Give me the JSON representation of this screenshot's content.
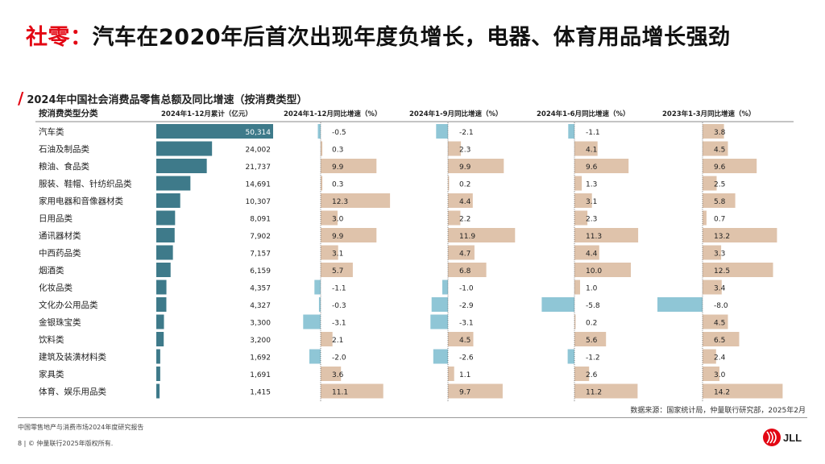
{
  "title": {
    "highlight": "社零：",
    "rest": "汽车在2020年后首次出现年度负增长，电器、体育用品增长强劲"
  },
  "subtitle": "2024年中国社会消费品零售总额及同比增速（按消费类型）",
  "source": "数据来源：国家统计局，仲量联行研究部，2025年2月",
  "footer": {
    "report": "中国零售地产与消费市场2024年度研究报告",
    "page": "8",
    "copyright": "© 仲量联行2025年版权所有."
  },
  "logo": {
    "text": "JLL",
    "color": "#e30613"
  },
  "colors": {
    "total": "#3e7a8a",
    "positive": "#dfc3ab",
    "negative": "#8fc6d6",
    "axis": "#555555"
  },
  "chart_data": {
    "type": "table",
    "columns": [
      "按消费类型分类",
      "2024年1-12月累计（亿元）",
      "2024年1-12月同比增速（%）",
      "2024年1-9月同比增速（%）",
      "2024年1-6月同比增速（%）",
      "2023年1-3月同比增速（%）"
    ],
    "categories": [
      "汽车类",
      "石油及制品类",
      "粮油、食品类",
      "服装、鞋帽、针纺织品类",
      "家用电器和音像器材类",
      "日用品类",
      "通讯器材类",
      "中西药品类",
      "烟酒类",
      "化妆品类",
      "文化办公用品类",
      "金银珠宝类",
      "饮料类",
      "建筑及装潢材料类",
      "家具类",
      "体育、娱乐用品类"
    ],
    "total": {
      "values": [
        50314,
        24002,
        21737,
        14691,
        10307,
        8091,
        7902,
        7157,
        6159,
        4357,
        4327,
        3300,
        3200,
        1692,
        1691,
        1415
      ],
      "labels": [
        "50,314",
        "24,002",
        "21,737",
        "14,691",
        "10,307",
        "8,091",
        "7,902",
        "7,157",
        "6,159",
        "4,357",
        "4,327",
        "3,300",
        "3,200",
        "1,692",
        "1,691",
        "1,415"
      ]
    },
    "series": [
      {
        "name": "2024年1-12月同比增速（%）",
        "values": [
          -0.5,
          0.3,
          9.9,
          0.3,
          12.3,
          3.0,
          9.9,
          3.1,
          5.7,
          -1.1,
          -0.3,
          -3.1,
          2.1,
          -2.0,
          3.6,
          11.1
        ],
        "labels": [
          "-0.5",
          "0.3",
          "9.9",
          "0.3",
          "12.3",
          "3.0",
          "9.9",
          "3.1",
          "5.7",
          "-1.1",
          "-0.3",
          "-3.1",
          "2.1",
          "-2.0",
          "3.6",
          "11.1"
        ]
      },
      {
        "name": "2024年1-9月同比增速（%）",
        "values": [
          -2.1,
          2.3,
          9.9,
          0.2,
          4.4,
          2.2,
          11.9,
          4.7,
          6.8,
          -1.0,
          -2.9,
          -3.1,
          4.5,
          -2.6,
          1.1,
          9.7
        ],
        "labels": [
          "-2.1",
          "2.3",
          "9.9",
          "0.2",
          "4.4",
          "2.2",
          "11.9",
          "4.7",
          "6.8",
          "-1.0",
          "-2.9",
          "-3.1",
          "4.5",
          "-2.6",
          "1.1",
          "9.7"
        ]
      },
      {
        "name": "2024年1-6月同比增速（%）",
        "values": [
          -1.1,
          4.1,
          9.6,
          1.3,
          3.1,
          2.3,
          11.3,
          4.4,
          10.0,
          1.0,
          -5.8,
          0.2,
          5.6,
          -1.2,
          2.6,
          11.2
        ],
        "labels": [
          "-1.1",
          "4.1",
          "9.6",
          "1.3",
          "3.1",
          "2.3",
          "11.3",
          "4.4",
          "10.0",
          "1.0",
          "-5.8",
          "0.2",
          "5.6",
          "-1.2",
          "2.6",
          "11.2"
        ]
      },
      {
        "name": "2023年1-3月同比增速（%）",
        "values": [
          3.8,
          4.5,
          9.6,
          2.5,
          5.8,
          0.7,
          13.2,
          3.3,
          12.5,
          3.4,
          -8.0,
          4.5,
          6.5,
          2.4,
          3.0,
          14.2
        ],
        "labels": [
          "3.8",
          "4.5",
          "9.6",
          "2.5",
          "5.8",
          "0.7",
          "13.2",
          "3.3",
          "12.5",
          "3.4",
          "-8.0",
          "4.5",
          "6.5",
          "2.4",
          "3.0",
          "14.2"
        ]
      }
    ]
  }
}
